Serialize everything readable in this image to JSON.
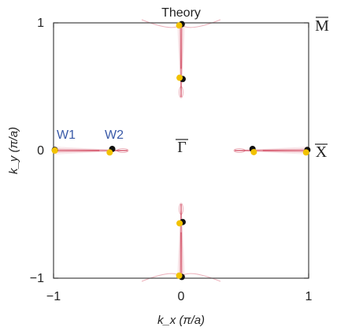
{
  "chart_data": {
    "type": "scatter",
    "title": "Theory",
    "xlabel": "k_x (π/a)",
    "ylabel": "k_y (π/a)",
    "xlim": [
      -1,
      1
    ],
    "ylim": [
      -1,
      1
    ],
    "x_ticks": [
      -1,
      0,
      1
    ],
    "y_ticks": [
      -1,
      0,
      1
    ],
    "x_tick_labels": [
      "−1",
      "0",
      "1"
    ],
    "y_tick_labels": [
      "−1",
      "0",
      "1"
    ],
    "grid": false,
    "symmetry_points": [
      {
        "label": "Γ",
        "x": 0,
        "y": 0
      },
      {
        "label": "X",
        "x": 1,
        "y": 0
      },
      {
        "label": "M",
        "x": 1,
        "y": 1
      }
    ],
    "annotations": [
      {
        "text": "W1",
        "x": -1.0,
        "y": 0.0,
        "color": "#3a5aa8"
      },
      {
        "text": "W2",
        "x": -0.54,
        "y": 0.0,
        "color": "#3a5aa8"
      }
    ],
    "colors": {
      "arc": "#c8203c",
      "black_point": "#111111",
      "yellow_point": "#f2c200",
      "label_blue": "#3a5aa8"
    },
    "series": [
      {
        "color": "black",
        "points": [
          {
            "x": -0.99,
            "y": 0.005
          },
          {
            "x": -0.54,
            "y": 0.012
          },
          {
            "x": 0.99,
            "y": 0.005
          },
          {
            "x": 0.56,
            "y": 0.012
          },
          {
            "x": 0.005,
            "y": 0.99
          },
          {
            "x": 0.012,
            "y": 0.56
          },
          {
            "x": 0.005,
            "y": -0.99
          },
          {
            "x": 0.012,
            "y": -0.56
          }
        ]
      },
      {
        "color": "yellow",
        "points": [
          {
            "x": -0.99,
            "y": 0.0
          },
          {
            "x": -0.56,
            "y": -0.015
          },
          {
            "x": 0.98,
            "y": -0.015
          },
          {
            "x": 0.57,
            "y": -0.012
          },
          {
            "x": -0.015,
            "y": 0.98
          },
          {
            "x": -0.012,
            "y": 0.57
          },
          {
            "x": -0.015,
            "y": -0.98
          },
          {
            "x": -0.012,
            "y": -0.57
          }
        ]
      }
    ],
    "fermi_arcs": [
      {
        "from": [
          -1.0,
          0.0
        ],
        "to": [
          -0.42,
          0.0
        ]
      },
      {
        "from": [
          1.0,
          0.0
        ],
        "to": [
          0.42,
          0.0
        ]
      },
      {
        "from": [
          0.0,
          1.0
        ],
        "to": [
          0.0,
          0.42
        ]
      },
      {
        "from": [
          0.0,
          -1.0
        ],
        "to": [
          0.0,
          -0.42
        ]
      }
    ]
  }
}
